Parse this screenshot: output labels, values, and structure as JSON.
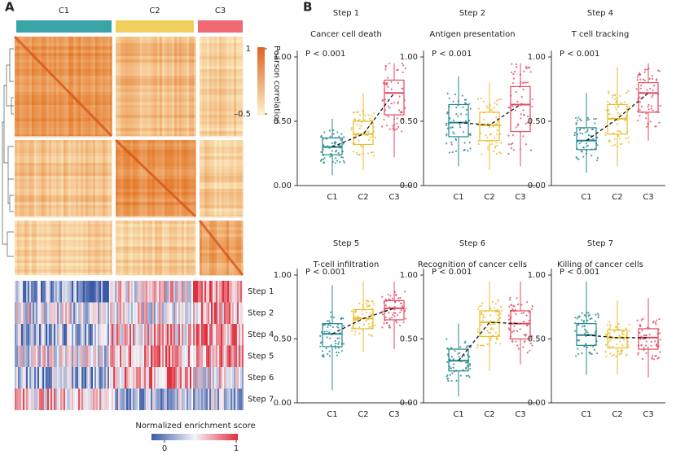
{
  "panel_a": {
    "label": "A",
    "columns": [
      "C1",
      "C2",
      "C3"
    ],
    "correlation_legend": {
      "title": "Pearson correlation",
      "ticks": [
        1,
        {
          "value": -0.5,
          "label": "–0.5"
        }
      ]
    },
    "rows": [
      "Step 1",
      "Step 2",
      "Step 4",
      "Step 5",
      "Step 6",
      "Step 7"
    ],
    "enrichment_legend": {
      "title": "Normalized enrichment score",
      "ticks": [
        0,
        1
      ]
    }
  },
  "panel_b": {
    "label": "B"
  },
  "chart_data": [
    {
      "type": "box",
      "title": "Step 1",
      "subtitle": "Cancer cell death",
      "annotation": "P < 0.001",
      "categories": [
        "C1",
        "C2",
        "C3"
      ],
      "colors": [
        "#23878f",
        "#e6bd2a",
        "#e04a5f"
      ],
      "boxes": [
        {
          "min": 0.08,
          "q1": 0.24,
          "median": 0.3,
          "q3": 0.37,
          "max": 0.52
        },
        {
          "min": 0.12,
          "q1": 0.32,
          "median": 0.4,
          "q3": 0.5,
          "max": 0.72
        },
        {
          "min": 0.22,
          "q1": 0.55,
          "median": 0.72,
          "q3": 0.82,
          "max": 0.95
        }
      ],
      "ylim": [
        0,
        1.05
      ],
      "yticks": [
        {
          "value": 0,
          "label": "0.00"
        },
        {
          "value": 0.5,
          "label": "0.50"
        },
        {
          "value": 1,
          "label": "1.00"
        }
      ]
    },
    {
      "type": "box",
      "title": "Step 2",
      "subtitle": "Antigen presentation",
      "annotation": "P < 0.001",
      "categories": [
        "C1",
        "C2",
        "C3"
      ],
      "colors": [
        "#23878f",
        "#e6bd2a",
        "#e04a5f"
      ],
      "boxes": [
        {
          "min": 0.15,
          "q1": 0.38,
          "median": 0.49,
          "q3": 0.63,
          "max": 0.85
        },
        {
          "min": 0.12,
          "q1": 0.35,
          "median": 0.47,
          "q3": 0.57,
          "max": 0.8
        },
        {
          "min": 0.15,
          "q1": 0.42,
          "median": 0.63,
          "q3": 0.77,
          "max": 0.95
        }
      ],
      "ylim": [
        0,
        1.05
      ],
      "yticks": [
        {
          "value": 0,
          "label": "0.00"
        },
        {
          "value": 0.5,
          "label": "0.50"
        },
        {
          "value": 1,
          "label": "1.00"
        }
      ]
    },
    {
      "type": "box",
      "title": "Step 4",
      "subtitle": "T cell tracking",
      "annotation": "P < 0.001",
      "categories": [
        "C1",
        "C2",
        "C3"
      ],
      "colors": [
        "#23878f",
        "#e6bd2a",
        "#e04a5f"
      ],
      "boxes": [
        {
          "min": 0.1,
          "q1": 0.28,
          "median": 0.35,
          "q3": 0.45,
          "max": 0.72
        },
        {
          "min": 0.15,
          "q1": 0.4,
          "median": 0.52,
          "q3": 0.63,
          "max": 0.92
        },
        {
          "min": 0.35,
          "q1": 0.57,
          "median": 0.72,
          "q3": 0.8,
          "max": 0.95
        }
      ],
      "ylim": [
        0,
        1.05
      ],
      "yticks": [
        {
          "value": 0,
          "label": "0.00"
        },
        {
          "value": 0.5,
          "label": "0.50"
        },
        {
          "value": 1,
          "label": "1.00"
        }
      ]
    },
    {
      "type": "box",
      "title": "Step 5",
      "subtitle": "T-cell infiltration",
      "annotation": "P < 0.001",
      "categories": [
        "C1",
        "C2",
        "C3"
      ],
      "colors": [
        "#23878f",
        "#e6bd2a",
        "#e04a5f"
      ],
      "boxes": [
        {
          "min": 0.1,
          "q1": 0.44,
          "median": 0.54,
          "q3": 0.62,
          "max": 0.92
        },
        {
          "min": 0.4,
          "q1": 0.58,
          "median": 0.66,
          "q3": 0.73,
          "max": 0.95
        },
        {
          "min": 0.42,
          "q1": 0.65,
          "median": 0.74,
          "q3": 0.8,
          "max": 0.95
        }
      ],
      "ylim": [
        0,
        1.05
      ],
      "yticks": [
        {
          "value": 0,
          "label": "0.00"
        },
        {
          "value": 0.5,
          "label": "0.50"
        },
        {
          "value": 1,
          "label": "1.00"
        }
      ]
    },
    {
      "type": "box",
      "title": "Step 6",
      "subtitle": "Recognition of cancer cells",
      "annotation": "P < 0.001",
      "categories": [
        "C1",
        "C2",
        "C3"
      ],
      "colors": [
        "#23878f",
        "#e6bd2a",
        "#e04a5f"
      ],
      "boxes": [
        {
          "min": 0.05,
          "q1": 0.25,
          "median": 0.33,
          "q3": 0.42,
          "max": 0.62
        },
        {
          "min": 0.25,
          "q1": 0.52,
          "median": 0.63,
          "q3": 0.72,
          "max": 0.95
        },
        {
          "min": 0.3,
          "q1": 0.5,
          "median": 0.62,
          "q3": 0.72,
          "max": 0.95
        }
      ],
      "ylim": [
        0,
        1.05
      ],
      "yticks": [
        {
          "value": 0,
          "label": "0.00"
        },
        {
          "value": 0.5,
          "label": "0.50"
        },
        {
          "value": 1,
          "label": "1.00"
        }
      ]
    },
    {
      "type": "box",
      "title": "Step 7",
      "subtitle": "Killing of cancer cells",
      "annotation": "P < 0.001",
      "categories": [
        "C1",
        "C2",
        "C3"
      ],
      "colors": [
        "#23878f",
        "#e6bd2a",
        "#e04a5f"
      ],
      "boxes": [
        {
          "min": 0.22,
          "q1": 0.45,
          "median": 0.53,
          "q3": 0.62,
          "max": 0.95
        },
        {
          "min": 0.22,
          "q1": 0.43,
          "median": 0.51,
          "q3": 0.57,
          "max": 0.8
        },
        {
          "min": 0.2,
          "q1": 0.42,
          "median": 0.51,
          "q3": 0.58,
          "max": 0.82
        }
      ],
      "ylim": [
        0,
        1.05
      ],
      "yticks": [
        {
          "value": 0,
          "label": "0.00"
        },
        {
          "value": 0.5,
          "label": "0.50"
        },
        {
          "value": 1,
          "label": "1.00"
        }
      ]
    }
  ]
}
